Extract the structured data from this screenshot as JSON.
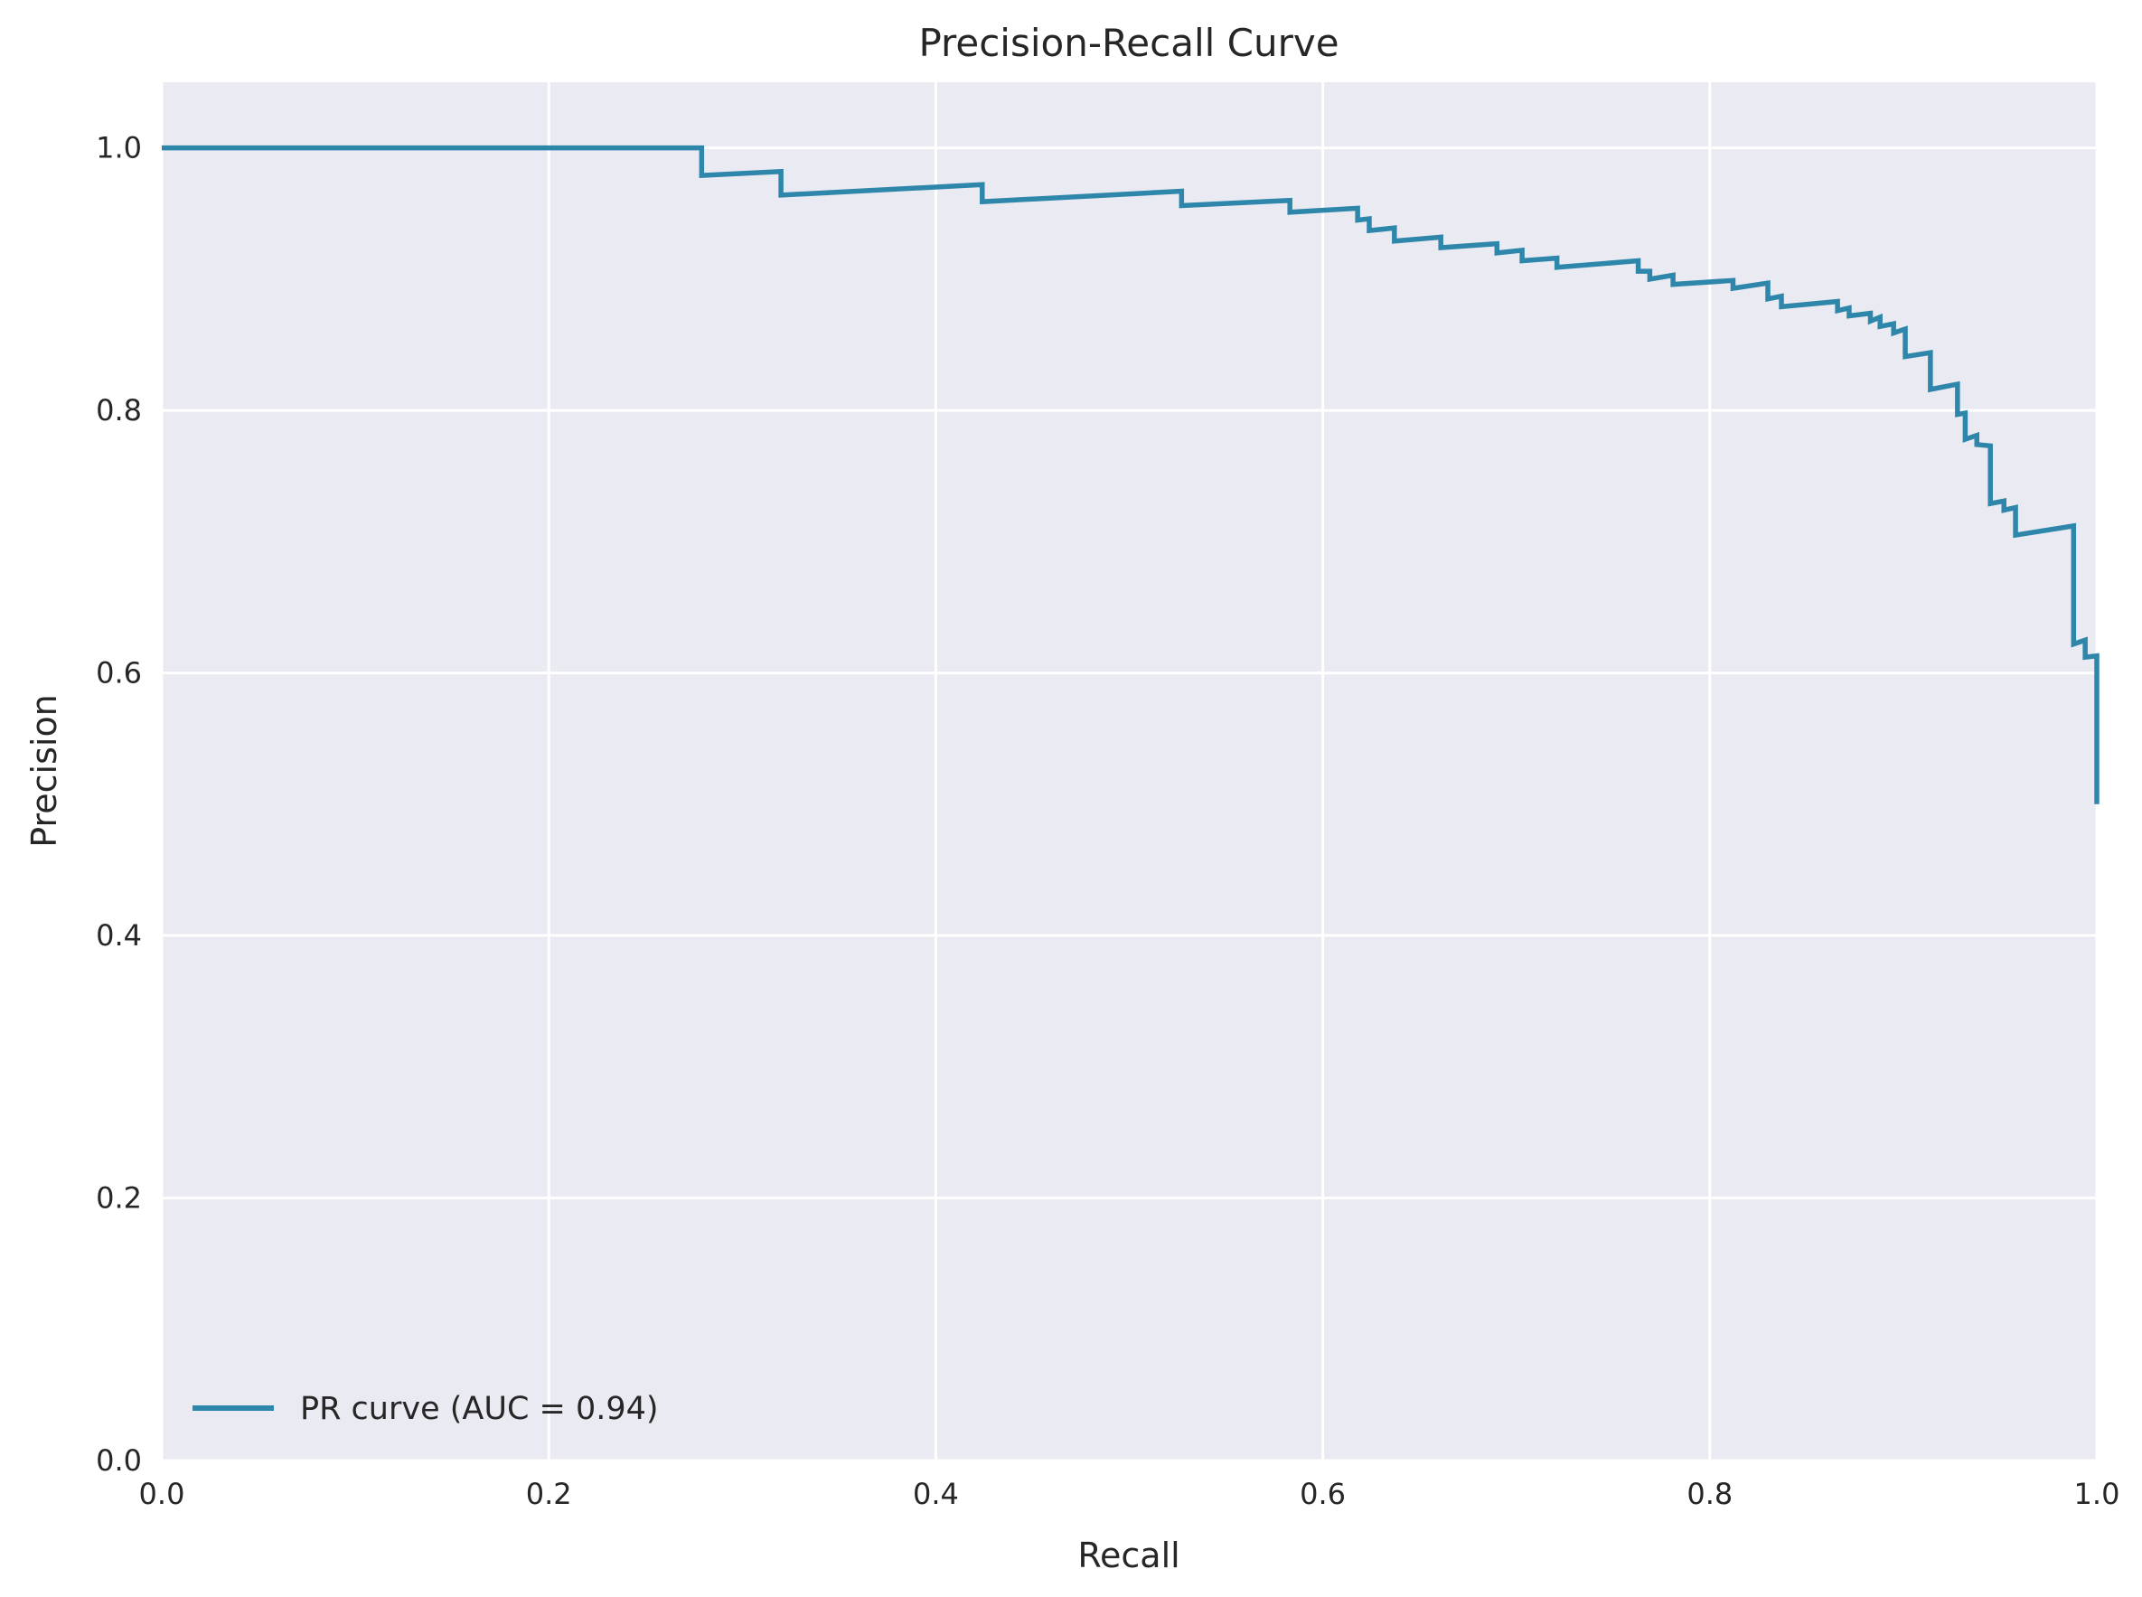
{
  "colors": {
    "plot_background": "#eaeaf2",
    "grid": "#ffffff",
    "series": "#2e86ab",
    "text": "#262626"
  },
  "chart_data": {
    "type": "line",
    "title": "Precision-Recall Curve",
    "xlabel": "Recall",
    "ylabel": "Precision",
    "xlim": [
      0.0,
      1.0
    ],
    "ylim": [
      0.0,
      1.05
    ],
    "xticks": [
      0.0,
      0.2,
      0.4,
      0.6,
      0.8,
      1.0
    ],
    "xtick_labels": [
      "0.0",
      "0.2",
      "0.4",
      "0.6",
      "0.8",
      "1.0"
    ],
    "yticks": [
      0.0,
      0.2,
      0.4,
      0.6,
      0.8,
      1.0
    ],
    "ytick_labels": [
      "0.0",
      "0.2",
      "0.4",
      "0.6",
      "0.8",
      "1.0"
    ],
    "grid": true,
    "legend_position": "lower-left",
    "series": [
      {
        "name": "PR curve (AUC = 0.94)",
        "step": "post",
        "x": [
          0.0,
          0.279,
          0.32,
          0.424,
          0.527,
          0.583,
          0.618,
          0.624,
          0.637,
          0.661,
          0.69,
          0.703,
          0.721,
          0.763,
          0.769,
          0.781,
          0.812,
          0.83,
          0.837,
          0.866,
          0.872,
          0.883,
          0.888,
          0.895,
          0.901,
          0.914,
          0.928,
          0.932,
          0.938,
          0.945,
          0.952,
          0.958,
          0.988,
          0.994,
          1.0
        ],
        "y": [
          1.0,
          0.979,
          0.964,
          0.959,
          0.956,
          0.951,
          0.945,
          0.937,
          0.929,
          0.924,
          0.92,
          0.914,
          0.909,
          0.906,
          0.9,
          0.896,
          0.893,
          0.885,
          0.879,
          0.876,
          0.872,
          0.868,
          0.864,
          0.859,
          0.841,
          0.816,
          0.797,
          0.778,
          0.774,
          0.729,
          0.724,
          0.705,
          0.622,
          0.612,
          0.5
        ],
        "segment_end_y": [
          1.0,
          0.982,
          0.972,
          0.967,
          0.96,
          0.954,
          0.946,
          0.939,
          0.932,
          0.927,
          0.922,
          0.916,
          0.914,
          0.906,
          0.903,
          0.899,
          0.897,
          0.887,
          0.883,
          0.878,
          0.874,
          0.871,
          0.866,
          0.862,
          0.844,
          0.82,
          0.798,
          0.781,
          0.773,
          0.731,
          0.726,
          0.712,
          0.625,
          0.613,
          0.5
        ]
      }
    ]
  }
}
